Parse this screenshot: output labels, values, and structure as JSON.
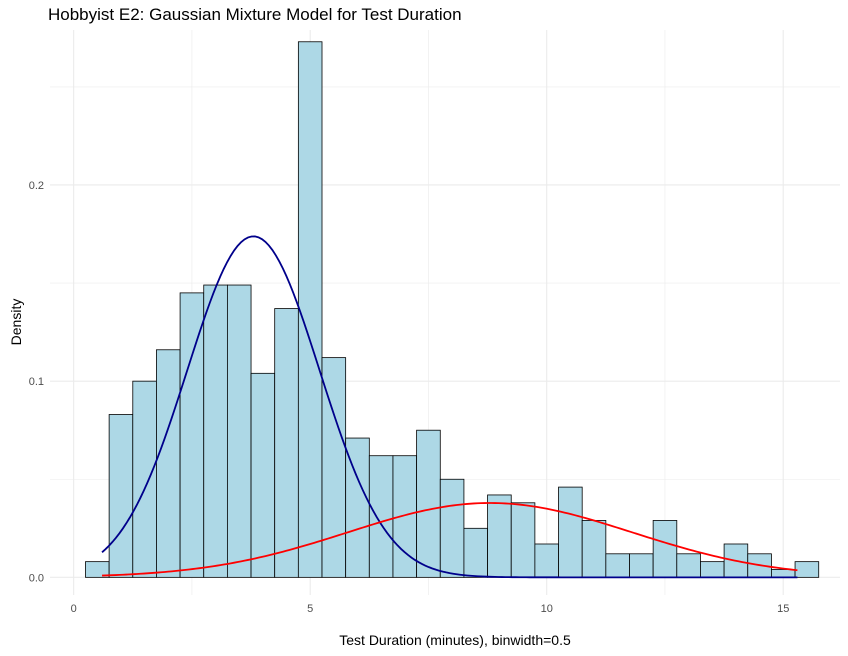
{
  "chart_data": {
    "type": "bar",
    "title": "Hobbyist E2: Gaussian Mixture Model for Test Duration",
    "xlabel": "Test Duration (minutes), binwidth=0.5",
    "ylabel": "Density",
    "xlim": [
      -0.5,
      16.2
    ],
    "ylim": [
      -0.009,
      0.279
    ],
    "x_ticks": [
      0,
      5,
      10,
      15
    ],
    "x_tick_labels": [
      "0",
      "5",
      "10",
      "15"
    ],
    "y_ticks": [
      0.0,
      0.1,
      0.2
    ],
    "y_tick_labels": [
      "0.0",
      "0.1",
      "0.2"
    ],
    "grid": true,
    "binwidth": 0.5,
    "histogram": {
      "bin_centers": [
        0.5,
        1.0,
        1.5,
        2.0,
        2.5,
        3.0,
        3.5,
        4.0,
        4.5,
        5.0,
        5.5,
        6.0,
        6.5,
        7.0,
        7.5,
        8.0,
        8.5,
        9.0,
        9.5,
        10.0,
        10.5,
        11.0,
        11.5,
        12.0,
        12.5,
        13.0,
        13.5,
        14.0,
        14.5,
        15.0,
        15.5
      ],
      "densities": [
        0.008,
        0.083,
        0.1,
        0.116,
        0.145,
        0.149,
        0.149,
        0.104,
        0.137,
        0.273,
        0.112,
        0.071,
        0.062,
        0.062,
        0.075,
        0.05,
        0.025,
        0.042,
        0.038,
        0.017,
        0.046,
        0.029,
        0.012,
        0.012,
        0.029,
        0.012,
        0.008,
        0.017,
        0.012,
        0.004,
        0.008
      ],
      "fill": "#add8e6",
      "edge": "#000000"
    },
    "components": [
      {
        "mean": 3.8,
        "sd": 1.4,
        "weight": 0.61,
        "color": "#00008b",
        "x_range": [
          0.6,
          15.3
        ]
      },
      {
        "mean": 8.8,
        "sd": 3.0,
        "weight": 0.285,
        "color": "#ff0000",
        "x_range": [
          0.6,
          15.3
        ]
      }
    ],
    "colors": {
      "bar_fill": "#add8e6",
      "bar_edge": "#000000",
      "component_1": "#00008b",
      "component_2": "#ff0000",
      "grid": "#ebebeb"
    }
  }
}
